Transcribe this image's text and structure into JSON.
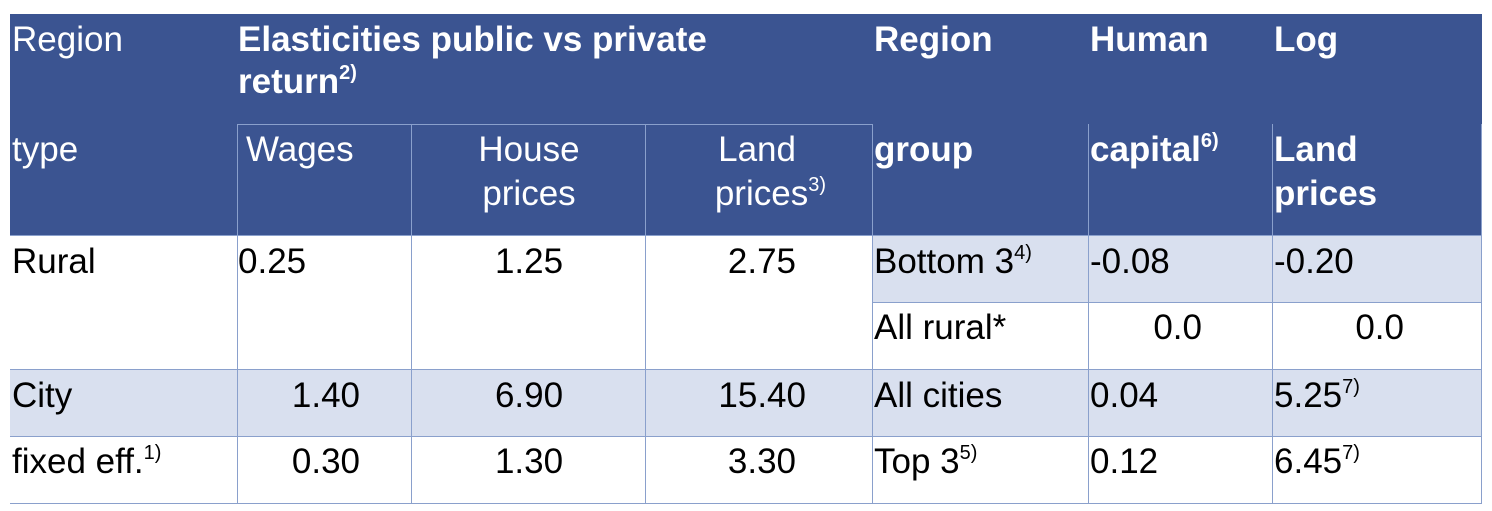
{
  "header": {
    "region_type_1": "Region",
    "region_type_2": "type",
    "elasticities_title": "Elasticities public vs private",
    "elasticities_title_2": "return",
    "elasticities_sup": "2)",
    "wages": "Wages",
    "house_1": "House",
    "house_2": "prices",
    "land_1": "Land",
    "land_2": "prices",
    "land_sup": "3)",
    "region_group_1": "Region",
    "region_group_2": "group",
    "human_1": "Human",
    "human_2": "capital",
    "human_sup": "6)",
    "log_1": "Log",
    "log_2": "Land",
    "log_3": "prices"
  },
  "rows": {
    "rural": {
      "label": "Rural",
      "wages": "0.25",
      "house": "1.25",
      "land": "2.75"
    },
    "city": {
      "label": "City",
      "wages": "1.40",
      "house": "6.90",
      "land": "15.40"
    },
    "fixed": {
      "label": "fixed eff.",
      "sup": "1)",
      "wages": "0.30",
      "house": "1.30",
      "land": "3.30"
    }
  },
  "groups": {
    "bottom": {
      "label": "Bottom 3",
      "sup": "4)",
      "human": "-0.08",
      "log": "-0.20"
    },
    "allrural": {
      "label": "All rural*",
      "human": "0.0",
      "log": "0.0"
    },
    "allcities": {
      "label": "All cities",
      "human": "0.04",
      "log": "5.25",
      "log_sup": "7)"
    },
    "top": {
      "label": "Top 3",
      "sup": "5)",
      "human": "0.12",
      "log": "6.45",
      "log_sup": "7)"
    }
  },
  "colors": {
    "header_bg": "#3b5491",
    "band_bg": "#d9e0ef",
    "grid": "#8aa0cc"
  }
}
